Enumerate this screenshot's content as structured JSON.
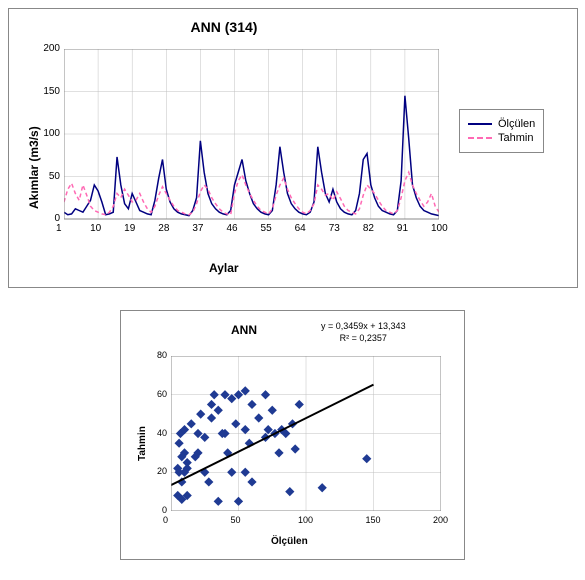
{
  "top_chart": {
    "type": "line",
    "title": "ANN (314)",
    "title_fontsize": 14,
    "xlabel": "Aylar",
    "ylabel": "Akımlar (m3/s)",
    "label_fontsize": 12,
    "tick_fontsize": 10,
    "xlim": [
      1,
      100
    ],
    "ylim": [
      0,
      200
    ],
    "xtick_step": 9,
    "xtick_start": 1,
    "ytick_step": 50,
    "background_color": "#ffffff",
    "plot_bg": "#ffffff",
    "grid_color": "#c0c0c0",
    "grid": true,
    "plot_border": "#888888",
    "series": [
      {
        "name": "Ölçülen",
        "color": "#000080",
        "dash": "solid",
        "width": 1.5,
        "values": [
          8,
          5,
          6,
          12,
          10,
          8,
          15,
          22,
          40,
          33,
          20,
          5,
          6,
          8,
          73,
          40,
          18,
          12,
          30,
          20,
          10,
          8,
          6,
          5,
          22,
          48,
          70,
          35,
          20,
          12,
          8,
          6,
          5,
          4,
          10,
          25,
          92,
          55,
          30,
          18,
          12,
          8,
          6,
          5,
          10,
          40,
          55,
          70,
          45,
          30,
          18,
          12,
          8,
          6,
          5,
          10,
          40,
          85,
          55,
          30,
          18,
          12,
          8,
          6,
          5,
          8,
          20,
          85,
          55,
          30,
          20,
          35,
          20,
          12,
          8,
          6,
          5,
          10,
          30,
          70,
          77,
          40,
          25,
          15,
          10,
          8,
          6,
          5,
          10,
          45,
          145,
          95,
          40,
          25,
          15,
          10,
          8,
          6,
          5,
          4
        ]
      },
      {
        "name": "Tahmin",
        "color": "#ff69b4",
        "dash": "dashed",
        "width": 1.5,
        "values": [
          20,
          35,
          42,
          30,
          22,
          40,
          28,
          15,
          10,
          8,
          6,
          5,
          8,
          15,
          30,
          25,
          35,
          28,
          20,
          22,
          30,
          20,
          12,
          8,
          15,
          28,
          38,
          30,
          22,
          15,
          10,
          8,
          6,
          5,
          8,
          18,
          32,
          40,
          35,
          25,
          18,
          12,
          8,
          6,
          5,
          30,
          45,
          52,
          40,
          30,
          22,
          15,
          10,
          8,
          6,
          12,
          28,
          40,
          48,
          35,
          25,
          18,
          12,
          8,
          6,
          10,
          18,
          40,
          35,
          28,
          30,
          22,
          32,
          24,
          15,
          10,
          8,
          6,
          12,
          28,
          40,
          35,
          30,
          22,
          15,
          10,
          8,
          6,
          10,
          25,
          45,
          55,
          40,
          30,
          22,
          15,
          20,
          30,
          15,
          8
        ]
      }
    ],
    "legend": {
      "position": "right",
      "items": [
        "Ölçülen",
        "Tahmin"
      ],
      "fontsize": 11
    }
  },
  "bottom_chart": {
    "type": "scatter",
    "title": "ANN",
    "title_fontsize": 12,
    "xlabel": "Ölçülen",
    "ylabel": "Tahmin",
    "label_fontsize": 10,
    "tick_fontsize": 9,
    "xlim": [
      0,
      200
    ],
    "ylim": [
      0,
      80
    ],
    "xtick_step": 50,
    "ytick_step": 20,
    "background_color": "#ffffff",
    "plot_bg": "#ffffff",
    "grid_color": "#c0c0c0",
    "plot_border": "#888888",
    "marker_color": "#1f3a93",
    "marker_size": 6,
    "marker_shape": "diamond",
    "trend_color": "#000000",
    "trend_width": 2,
    "equation": "y = 0,3459x + 13,343",
    "r2": "R² = 0,2357",
    "eq_fontsize": 9,
    "points": [
      [
        5,
        8
      ],
      [
        5,
        22
      ],
      [
        6,
        20
      ],
      [
        6,
        35
      ],
      [
        7,
        40
      ],
      [
        8,
        15
      ],
      [
        8,
        6
      ],
      [
        8,
        28
      ],
      [
        10,
        30
      ],
      [
        10,
        42
      ],
      [
        10,
        20
      ],
      [
        12,
        25
      ],
      [
        12,
        8
      ],
      [
        12,
        22
      ],
      [
        15,
        45
      ],
      [
        18,
        28
      ],
      [
        20,
        40
      ],
      [
        20,
        30
      ],
      [
        22,
        50
      ],
      [
        25,
        38
      ],
      [
        25,
        20
      ],
      [
        28,
        15
      ],
      [
        30,
        55
      ],
      [
        30,
        48
      ],
      [
        32,
        60
      ],
      [
        35,
        52
      ],
      [
        35,
        5
      ],
      [
        38,
        40
      ],
      [
        40,
        40
      ],
      [
        40,
        60
      ],
      [
        42,
        30
      ],
      [
        45,
        58
      ],
      [
        45,
        20
      ],
      [
        48,
        45
      ],
      [
        50,
        60
      ],
      [
        50,
        5
      ],
      [
        55,
        42
      ],
      [
        55,
        62
      ],
      [
        55,
        20
      ],
      [
        58,
        35
      ],
      [
        60,
        55
      ],
      [
        60,
        15
      ],
      [
        65,
        48
      ],
      [
        70,
        38
      ],
      [
        70,
        60
      ],
      [
        72,
        42
      ],
      [
        75,
        52
      ],
      [
        77,
        40
      ],
      [
        80,
        30
      ],
      [
        82,
        42
      ],
      [
        85,
        40
      ],
      [
        88,
        10
      ],
      [
        90,
        45
      ],
      [
        92,
        32
      ],
      [
        95,
        55
      ],
      [
        112,
        12
      ],
      [
        145,
        27
      ]
    ],
    "trend_line": {
      "slope": 0.3459,
      "intercept": 13.343
    }
  }
}
